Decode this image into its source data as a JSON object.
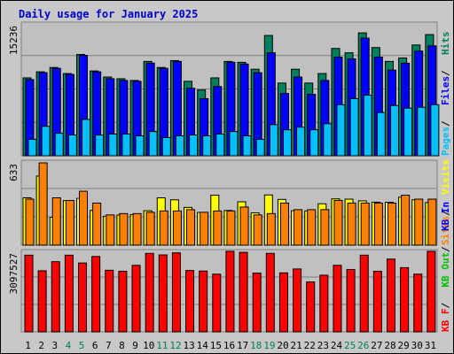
{
  "chart_data": {
    "type": "bar",
    "title": "Daily usage for January 2025",
    "days": [
      "1",
      "2",
      "3",
      "4",
      "5",
      "6",
      "7",
      "8",
      "9",
      "10",
      "11",
      "12",
      "13",
      "14",
      "15",
      "16",
      "17",
      "18",
      "19",
      "20",
      "21",
      "22",
      "23",
      "24",
      "25",
      "26",
      "27",
      "28",
      "29",
      "30",
      "31"
    ],
    "weekend_days": [
      "4",
      "5",
      "11",
      "12",
      "18",
      "19",
      "25",
      "26"
    ],
    "panels": [
      {
        "scale_label": "15236",
        "max": 15236,
        "legend": [
          {
            "text": "Hits",
            "color": "#00805c"
          },
          {
            "text": "Files",
            "color": "#0000ff"
          },
          {
            "text": "Pages",
            "color": "#00c0ff"
          }
        ],
        "series": [
          {
            "name": "Hits",
            "color": "#00805c",
            "values": [
              9000,
              9700,
              10200,
              9500,
              11700,
              9800,
              9100,
              8900,
              8700,
              10900,
              10200,
              11000,
              8600,
              7600,
              9000,
              10900,
              10800,
              10000,
              13900,
              8400,
              10000,
              8400,
              9500,
              12400,
              11900,
              14200,
              12500,
              10900,
              11300,
              12800,
              14000
            ]
          },
          {
            "name": "Files",
            "color": "#0000ff",
            "values": [
              8800,
              9600,
              10100,
              9400,
              11600,
              9700,
              8900,
              8700,
              8600,
              10700,
              10100,
              10900,
              7800,
              6600,
              8000,
              10800,
              10600,
              9600,
              11900,
              7200,
              9100,
              7100,
              8700,
              11400,
              11200,
              13600,
              11400,
              9900,
              10700,
              12100,
              12700
            ]
          },
          {
            "name": "Pages",
            "color": "#00c0ff",
            "values": [
              1900,
              3400,
              2600,
              2400,
              4200,
              2400,
              2500,
              2500,
              2300,
              2800,
              2100,
              2300,
              2400,
              2300,
              2500,
              2800,
              2300,
              1900,
              3600,
              3000,
              3300,
              3000,
              3700,
              5900,
              6600,
              7000,
              5000,
              5800,
              5500,
              5600,
              5900
            ]
          }
        ]
      },
      {
        "scale_label": "633",
        "max": 633,
        "legend": [
          {
            "text": "Visits",
            "color": "#ffff00"
          },
          {
            "text": "Sites",
            "color": "#ff8000"
          }
        ],
        "series": [
          {
            "name": "Visits",
            "color": "#ffff00",
            "values": [
              360,
              526,
              212,
              339,
              356,
              264,
              220,
              229,
              232,
              262,
              360,
              345,
              287,
              249,
              380,
              264,
              330,
              246,
              382,
              348,
              262,
              260,
              315,
              352,
              350,
              337,
              327,
              326,
              365,
              345,
              324
            ]
          },
          {
            "name": "Sites",
            "color": "#ff8000",
            "values": [
              350,
              626,
              360,
              340,
              410,
              320,
              230,
              240,
              240,
              250,
              260,
              260,
              270,
              250,
              260,
              260,
              290,
              230,
              240,
              320,
              270,
              270,
              270,
              340,
              320,
              320,
              320,
              320,
              380,
              350,
              350
            ]
          }
        ]
      },
      {
        "scale_label": "3097527",
        "max": 3097527,
        "legend": [
          {
            "text": "KB In",
            "color": "#0000ff"
          },
          {
            "text": "KB Out",
            "color": "#00c000"
          },
          {
            "text": "KB F",
            "color": "#ff0000"
          }
        ],
        "series": [
          {
            "name": "KB F",
            "color": "#ff0000",
            "values": [
              2950000,
              2350000,
              2700000,
              2950000,
              2650000,
              2900000,
              2370000,
              2330000,
              2560000,
              3020000,
              2960000,
              3040000,
              2360000,
              2340000,
              2220000,
              3100000,
              3060000,
              2260000,
              3020000,
              2270000,
              2420000,
              1920000,
              2180000,
              2560000,
              2400000,
              2950000,
              2330000,
              2800000,
              2470000,
              2220000,
              3100000
            ]
          }
        ]
      }
    ],
    "ylabel_left": [
      "15236",
      "633",
      "3097527"
    ]
  },
  "colors": {
    "background": "#c8c8c8",
    "plot_bg": "#c0c0c0",
    "title": "#0000cc",
    "weekend_label": "#00805c",
    "weekday_label": "#000000",
    "grid": "#808080"
  }
}
